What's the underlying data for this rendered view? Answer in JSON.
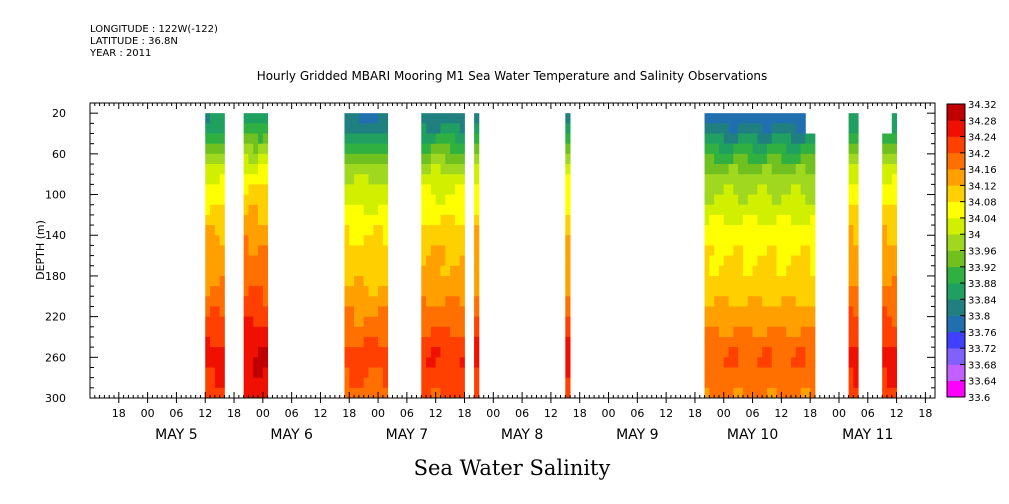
{
  "header": {
    "longitude": "LONGITUDE : 122W(-122)",
    "latitude": "LATITUDE : 36.8N",
    "year": "YEAR : 2011"
  },
  "chart_data": {
    "type": "heatmap",
    "title": "Hourly Gridded MBARI Mooring M1 Sea Water Temperature and Salinity Observations",
    "xlabel": "Sea Water Salinity",
    "ylabel": "DEPTH (m)",
    "x_unit": "hours since 2011-05-05 00:00",
    "xlim": [
      -12,
      164
    ],
    "ylim": [
      300,
      10
    ],
    "y_axis_inverted": true,
    "y_ticks": [
      20,
      60,
      100,
      140,
      180,
      220,
      260,
      300
    ],
    "x_hour_ticks": [
      {
        "hours": -6,
        "label": "18"
      },
      {
        "hours": 0,
        "label": "00"
      },
      {
        "hours": 6,
        "label": "06"
      },
      {
        "hours": 12,
        "label": "12"
      },
      {
        "hours": 18,
        "label": "18"
      },
      {
        "hours": 24,
        "label": "00"
      },
      {
        "hours": 30,
        "label": "06"
      },
      {
        "hours": 36,
        "label": "12"
      },
      {
        "hours": 42,
        "label": "18"
      },
      {
        "hours": 48,
        "label": "00"
      },
      {
        "hours": 54,
        "label": "06"
      },
      {
        "hours": 60,
        "label": "12"
      },
      {
        "hours": 66,
        "label": "18"
      },
      {
        "hours": 72,
        "label": "00"
      },
      {
        "hours": 78,
        "label": "06"
      },
      {
        "hours": 84,
        "label": "12"
      },
      {
        "hours": 90,
        "label": "18"
      },
      {
        "hours": 96,
        "label": "00"
      },
      {
        "hours": 102,
        "label": "06"
      },
      {
        "hours": 108,
        "label": "12"
      },
      {
        "hours": 114,
        "label": "18"
      },
      {
        "hours": 120,
        "label": "00"
      },
      {
        "hours": 126,
        "label": "06"
      },
      {
        "hours": 132,
        "label": "12"
      },
      {
        "hours": 138,
        "label": "18"
      },
      {
        "hours": 144,
        "label": "00"
      },
      {
        "hours": 150,
        "label": "06"
      },
      {
        "hours": 156,
        "label": "12"
      },
      {
        "hours": 162,
        "label": "18"
      }
    ],
    "day_labels": [
      {
        "hours": 6,
        "label": "MAY  5"
      },
      {
        "hours": 30,
        "label": "MAY  6"
      },
      {
        "hours": 54,
        "label": "MAY  7"
      },
      {
        "hours": 78,
        "label": "MAY  8"
      },
      {
        "hours": 102,
        "label": "MAY  9"
      },
      {
        "hours": 126,
        "label": "MAY 10"
      },
      {
        "hours": 150,
        "label": "MAY 11"
      }
    ],
    "colorbar": {
      "min": 33.6,
      "max": 34.32,
      "step": 0.04,
      "labels": [
        "34.32",
        "34.28",
        "34.24",
        "34.2",
        "34.16",
        "34.12",
        "34.08",
        "34.04",
        "34",
        "33.96",
        "33.92",
        "33.88",
        "33.84",
        "33.8",
        "33.76",
        "33.72",
        "33.68",
        "33.64",
        "33.6"
      ],
      "colors": [
        "#ff00ff",
        "#c060ff",
        "#8060ff",
        "#4040ff",
        "#2070b0",
        "#208080",
        "#20a060",
        "#30b040",
        "#70c020",
        "#a0d820",
        "#d0f000",
        "#ffff00",
        "#ffd000",
        "#ffa000",
        "#ff7000",
        "#ff4000",
        "#f01000",
        "#c00000"
      ]
    },
    "depth_levels": [
      20,
      40,
      60,
      80,
      100,
      120,
      140,
      160,
      180,
      200,
      220,
      240,
      260,
      280,
      300
    ],
    "profile_salinity": [
      33.82,
      33.88,
      33.96,
      34.03,
      34.06,
      34.09,
      34.12,
      34.14,
      34.15,
      34.17,
      34.2,
      34.23,
      34.26,
      34.24,
      34.22
    ],
    "data_blocks": [
      {
        "x0": 12,
        "x1": 16,
        "top": 20,
        "offset": 0.0
      },
      {
        "x0": 20,
        "x1": 25,
        "top": 20,
        "offset": 0.03
      },
      {
        "x0": 41,
        "x1": 50,
        "top": 20,
        "offset": -0.04
      },
      {
        "x0": 57,
        "x1": 66,
        "top": 20,
        "offset": -0.02
      },
      {
        "x0": 68,
        "x1": 69,
        "top": 20,
        "offset": 0.0
      },
      {
        "x0": 87,
        "x1": 88,
        "top": 20,
        "offset": 0.0
      },
      {
        "x0": 116,
        "x1": 137,
        "top": 20,
        "offset": -0.06
      },
      {
        "x0": 137,
        "x1": 139,
        "top": 40,
        "offset": -0.06
      },
      {
        "x0": 146,
        "x1": 148,
        "top": 20,
        "offset": 0.0
      },
      {
        "x0": 153,
        "x1": 155,
        "top": 40,
        "offset": 0.0
      },
      {
        "x0": 155,
        "x1": 156,
        "top": 20,
        "offset": 0.0
      }
    ]
  }
}
